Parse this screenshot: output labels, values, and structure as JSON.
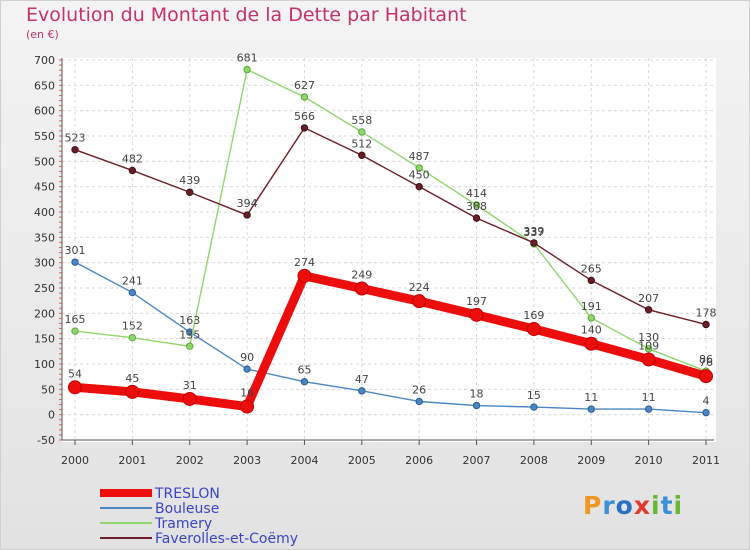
{
  "title": "Evolution du Montant de la Dette par Habitant",
  "subtitle": "(en €)",
  "logo": {
    "text": "Proxiti",
    "colors": [
      "#f29720",
      "#3a8fd6",
      "#2b6fc2",
      "#e33a2b",
      "#67b832",
      "#3a8fd6",
      "#67b832"
    ]
  },
  "chart_data": {
    "type": "line",
    "x": [
      "2000",
      "2001",
      "2002",
      "2003",
      "2004",
      "2005",
      "2006",
      "2007",
      "2008",
      "2009",
      "2010",
      "2011"
    ],
    "ylim": [
      -50,
      700
    ],
    "yticks": [
      -50,
      0,
      50,
      100,
      150,
      200,
      250,
      300,
      350,
      400,
      450,
      500,
      550,
      600,
      650,
      700
    ],
    "grid": true,
    "legend_position": "bottom-left",
    "series": [
      {
        "name": "Bouleuse",
        "color": "#4a86c3",
        "values": [
          301,
          241,
          163,
          90,
          65,
          47,
          26,
          18,
          15,
          11,
          11,
          4
        ]
      },
      {
        "name": "Tramery",
        "color": "#8fd66b",
        "values": [
          165,
          152,
          135,
          681,
          627,
          558,
          487,
          414,
          337,
          191,
          130,
          86
        ]
      },
      {
        "name": "Faverolles-et-Coëmy",
        "color": "#6b1e27",
        "values": [
          523,
          482,
          439,
          394,
          566,
          512,
          450,
          388,
          339,
          265,
          207,
          178
        ]
      },
      {
        "name": "TRESLON",
        "color": "#ee0d0d",
        "values": [
          54,
          45,
          31,
          16,
          274,
          249,
          224,
          197,
          169,
          140,
          109,
          76
        ]
      }
    ]
  }
}
